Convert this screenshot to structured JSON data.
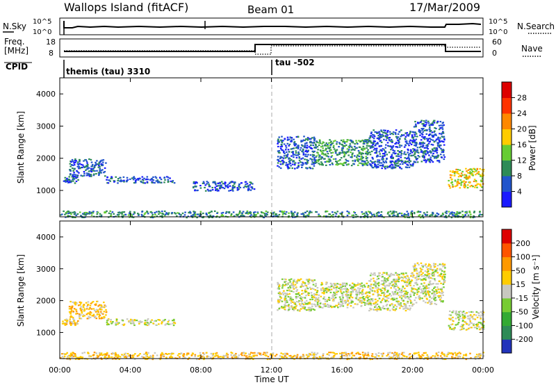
{
  "header": {
    "station": "Wallops Island (fitACF)",
    "beam": "Beam 01",
    "date": "17/Mar/2009"
  },
  "noise_panel": {
    "left_label": "N.Sky",
    "right_label": "N.Search",
    "ticks": [
      "10^5",
      "10^0"
    ]
  },
  "freq_panel": {
    "left_label_top": "Freq.",
    "left_label_bottom": "[MHz]",
    "right_label": "Nave",
    "left_ticks": [
      "18",
      "8"
    ],
    "right_ticks": [
      "60",
      "0"
    ]
  },
  "cpid": {
    "label": "CPID",
    "segments": [
      {
        "start_hour": 0.0,
        "text": "themis (tau) 3310"
      },
      {
        "start_hour": 12.0,
        "text": "tau -502"
      }
    ]
  },
  "x_axis": {
    "label": "Time UT",
    "ticks": [
      "00:00",
      "04:00",
      "08:00",
      "12:00",
      "16:00",
      "20:00",
      "00:00"
    ]
  },
  "chart_data": [
    {
      "type": "heatmap",
      "title": "",
      "ylabel": "Slant Range [km]",
      "xlabel": "Time UT",
      "xlim_hours": [
        0,
        24
      ],
      "ylim": [
        180,
        4500
      ],
      "yticks": [
        1000,
        2000,
        3000,
        4000
      ],
      "colorbar": {
        "label": "Power [dB]",
        "ticks": [
          "4",
          "8",
          "12",
          "16",
          "20",
          "24",
          "28"
        ],
        "colors": [
          "#1a1aff",
          "#2255cc",
          "#2e8b57",
          "#66cc33",
          "#ffcc00",
          "#ff8800",
          "#ff3300",
          "#dd0000"
        ]
      },
      "scatter_regions": [
        {
          "t0": 0.1,
          "t1": 1.0,
          "r0": 1250,
          "r1": 1450,
          "level": 1
        },
        {
          "t0": 0.5,
          "t1": 2.6,
          "r0": 1450,
          "r1": 2000,
          "level": 1
        },
        {
          "t0": 2.6,
          "t1": 6.5,
          "r0": 1250,
          "r1": 1450,
          "level": 1
        },
        {
          "t0": 7.5,
          "t1": 11.0,
          "r0": 1000,
          "r1": 1300,
          "level": 1
        },
        {
          "t0": 12.3,
          "t1": 14.5,
          "r0": 1700,
          "r1": 2700,
          "level": 1
        },
        {
          "t0": 14.5,
          "t1": 17.5,
          "r0": 1800,
          "r1": 2600,
          "level": 2
        },
        {
          "t0": 17.5,
          "t1": 20.0,
          "r0": 1700,
          "r1": 2900,
          "level": 1
        },
        {
          "t0": 20.0,
          "t1": 21.8,
          "r0": 1900,
          "r1": 3200,
          "level": 1
        },
        {
          "t0": 22.0,
          "t1": 24.0,
          "r0": 1100,
          "r1": 1700,
          "level": 4
        },
        {
          "t0": 0.0,
          "t1": 24.0,
          "r0": 180,
          "r1": 380,
          "level": 2
        }
      ]
    },
    {
      "type": "heatmap",
      "title": "",
      "ylabel": "Slant Range [km]",
      "xlabel": "Time UT",
      "xlim_hours": [
        0,
        24
      ],
      "ylim": [
        180,
        4500
      ],
      "yticks": [
        1000,
        2000,
        3000,
        4000
      ],
      "colorbar": {
        "label": "Velocity [m s⁻¹]",
        "ticks": [
          "200",
          "100",
          "50",
          "15",
          "-15",
          "-50",
          "-100",
          "-200"
        ],
        "colors": [
          "#2233bb",
          "#2e8b57",
          "#33aa33",
          "#77cc33",
          "#c8c8c0",
          "#ffcc00",
          "#ff9900",
          "#ff5500",
          "#dd0000"
        ]
      },
      "scatter_regions": [
        {
          "t0": 0.1,
          "t1": 1.0,
          "r0": 1250,
          "r1": 1450,
          "level": 5
        },
        {
          "t0": 0.5,
          "t1": 2.6,
          "r0": 1450,
          "r1": 2000,
          "level": 5
        },
        {
          "t0": 2.6,
          "t1": 6.5,
          "r0": 1250,
          "r1": 1450,
          "level": 4
        },
        {
          "t0": 12.3,
          "t1": 14.5,
          "r0": 1700,
          "r1": 2700,
          "level": 4
        },
        {
          "t0": 14.5,
          "t1": 17.5,
          "r0": 1800,
          "r1": 2600,
          "level": 4
        },
        {
          "t0": 17.5,
          "t1": 20.0,
          "r0": 1700,
          "r1": 2900,
          "level": 4
        },
        {
          "t0": 20.0,
          "t1": 21.8,
          "r0": 1900,
          "r1": 3200,
          "level": 4
        },
        {
          "t0": 22.0,
          "t1": 24.0,
          "r0": 1100,
          "r1": 1700,
          "level": 4
        },
        {
          "t0": 0.0,
          "t1": 24.0,
          "r0": 180,
          "r1": 400,
          "level": 5
        }
      ]
    }
  ]
}
